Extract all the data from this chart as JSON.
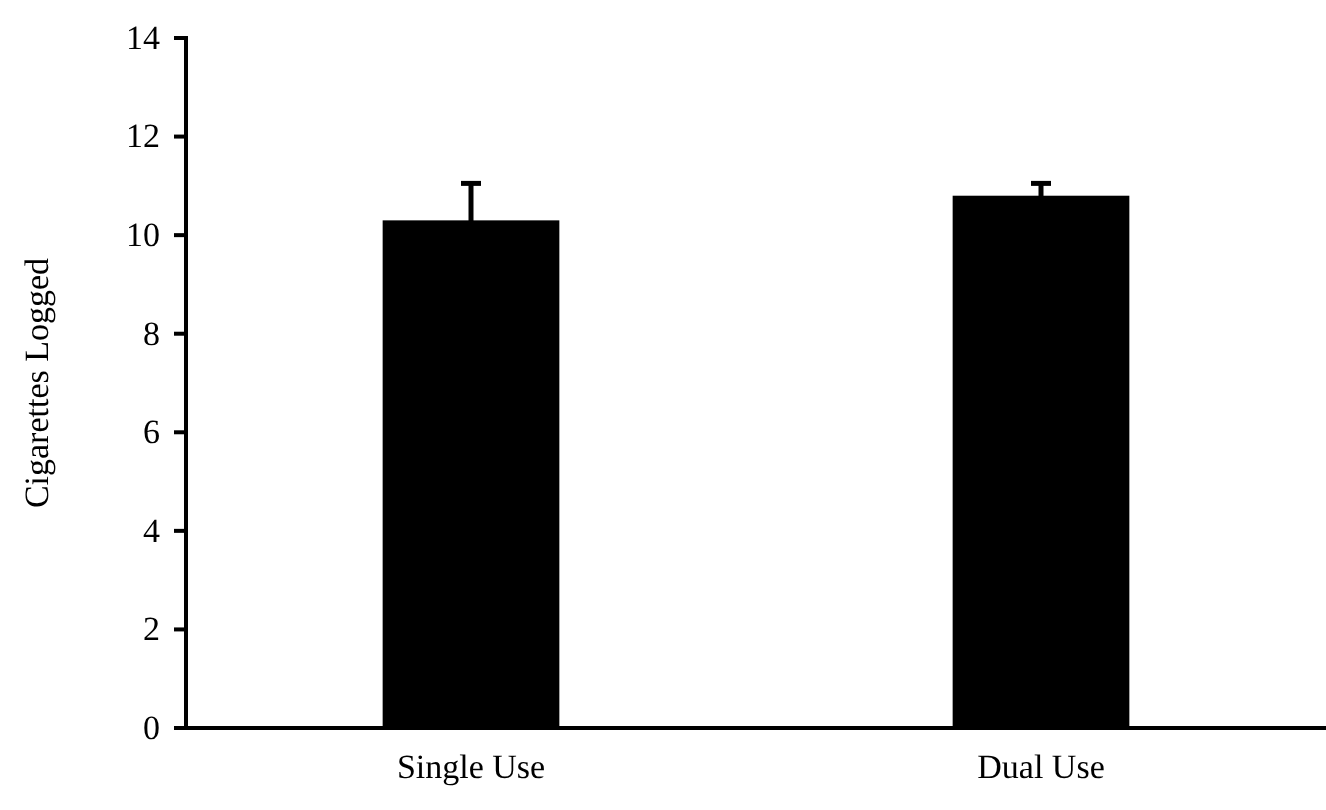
{
  "chart_data": {
    "type": "bar",
    "ylabel": "Cigarettes  Logged",
    "categories": [
      "Single Use",
      "Dual Use"
    ],
    "values": [
      10.3,
      10.8
    ],
    "errors": [
      0.75,
      0.25
    ],
    "color": "#000000",
    "ylim": [
      0,
      14
    ],
    "yticks": [
      0,
      2,
      4,
      6,
      8,
      10,
      12,
      14
    ],
    "grid": false
  }
}
